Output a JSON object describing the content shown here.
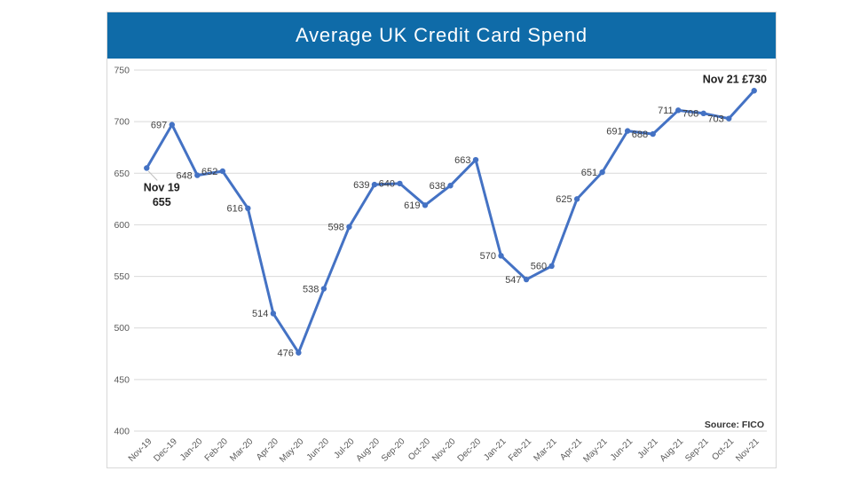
{
  "chart_data": {
    "type": "line",
    "title": "Average UK Credit Card Spend",
    "categories": [
      "Nov-19",
      "Dec-19",
      "Jan-20",
      "Feb-20",
      "Mar-20",
      "Apr-20",
      "May-20",
      "Jun-20",
      "Jul-20",
      "Aug-20",
      "Sep-20",
      "Oct-20",
      "Nov-20",
      "Dec-20",
      "Jan-21",
      "Feb-21",
      "Mar-21",
      "Apr-21",
      "May-21",
      "Jun-21",
      "Jul-21",
      "Aug-21",
      "Sep-21",
      "Oct-21",
      "Nov-21"
    ],
    "values": [
      655,
      697,
      648,
      652,
      616,
      514,
      476,
      538,
      598,
      639,
      640,
      619,
      638,
      663,
      570,
      547,
      560,
      625,
      651,
      691,
      688,
      711,
      708,
      703,
      730
    ],
    "ylim": [
      400,
      750
    ],
    "ytick_step": 50,
    "grid": "horizontal",
    "legend": "none",
    "label_position": "left",
    "annotations": {
      "first_point_callout": {
        "lines": [
          "Nov 19",
          "655"
        ]
      },
      "last_point_label": "Nov 21 £730"
    },
    "source_note": "Source: FICO",
    "colors": {
      "banner": "#0F6BA8",
      "line": "#4472C4",
      "grid": "#D9D9D9",
      "axis_text": "#595959",
      "label_text": "#404040",
      "annotation_text": "#1F1F1F",
      "leader_line": "#BFBFBF"
    }
  }
}
